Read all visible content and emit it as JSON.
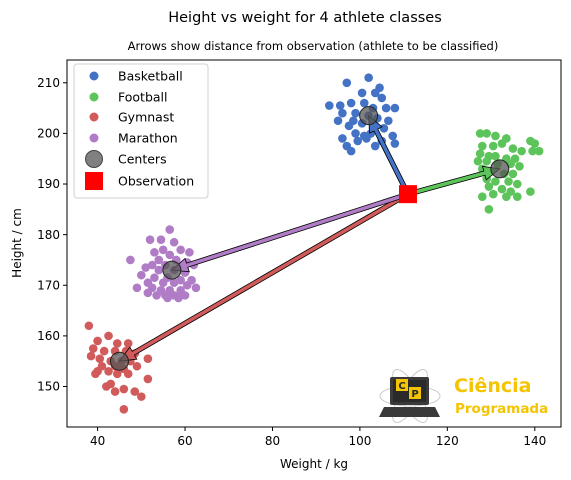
{
  "figure": {
    "suptitle": "Height vs weight for 4 athlete classes"
  },
  "chart_data": {
    "type": "scatter",
    "title": "Arrows show distance from observation (athlete to be classified)",
    "xlabel": "Weight / kg",
    "ylabel": "Height / cm",
    "xlim": [
      33,
      146
    ],
    "ylim": [
      142,
      214.5
    ],
    "xticks": [
      "40",
      "60",
      "80",
      "100",
      "120",
      "140"
    ],
    "yticks": [
      "150",
      "160",
      "170",
      "180",
      "190",
      "200",
      "210"
    ],
    "grid": false,
    "legend_position": "top-left",
    "series": [
      {
        "name": "Basketball",
        "color": "#4472c4",
        "points": [
          [
            102.0,
            211.0
          ],
          [
            97.0,
            210.0
          ],
          [
            104.5,
            209.0
          ],
          [
            100.5,
            208.0
          ],
          [
            103.5,
            208.0
          ],
          [
            105.0,
            207.0
          ],
          [
            93.0,
            205.5
          ],
          [
            95.5,
            205.5
          ],
          [
            98.0,
            206.0
          ],
          [
            101.0,
            206.0
          ],
          [
            103.0,
            205.0
          ],
          [
            106.0,
            205.0
          ],
          [
            108.0,
            205.0
          ],
          [
            96.0,
            204.0
          ],
          [
            99.0,
            204.0
          ],
          [
            102.0,
            203.5
          ],
          [
            104.0,
            203.0
          ],
          [
            106.5,
            202.5
          ],
          [
            95.0,
            202.5
          ],
          [
            98.5,
            202.5
          ],
          [
            100.5,
            202.0
          ],
          [
            97.5,
            201.5
          ],
          [
            103.0,
            201.0
          ],
          [
            105.5,
            201.0
          ],
          [
            99.0,
            200.0
          ],
          [
            102.5,
            200.0
          ],
          [
            101.0,
            199.5
          ],
          [
            107.5,
            199.5
          ],
          [
            96.0,
            199.0
          ],
          [
            99.5,
            198.5
          ],
          [
            105.0,
            198.5
          ],
          [
            97.0,
            197.5
          ],
          [
            103.5,
            197.5
          ],
          [
            108.0,
            198.0
          ],
          [
            98.0,
            196.5
          ],
          [
            101.5,
            199.0
          ]
        ]
      },
      {
        "name": "Football",
        "color": "#5cc45a",
        "points": [
          [
            127.5,
            200.0
          ],
          [
            129.0,
            200.0
          ],
          [
            131.0,
            199.5
          ],
          [
            133.5,
            199.0
          ],
          [
            139.0,
            198.5
          ],
          [
            140.0,
            198.0
          ],
          [
            128.0,
            197.5
          ],
          [
            130.5,
            197.5
          ],
          [
            132.5,
            198.0
          ],
          [
            135.0,
            197.0
          ],
          [
            137.0,
            196.5
          ],
          [
            139.5,
            196.5
          ],
          [
            141.0,
            196.5
          ],
          [
            127.5,
            196.0
          ],
          [
            129.5,
            195.5
          ],
          [
            131.0,
            195.5
          ],
          [
            133.5,
            195.0
          ],
          [
            135.5,
            195.0
          ],
          [
            127.0,
            194.5
          ],
          [
            129.0,
            194.5
          ],
          [
            131.5,
            194.0
          ],
          [
            134.5,
            194.0
          ],
          [
            136.5,
            193.5
          ],
          [
            128.0,
            193.0
          ],
          [
            130.0,
            192.5
          ],
          [
            133.0,
            192.0
          ],
          [
            135.0,
            192.0
          ],
          [
            129.0,
            191.0
          ],
          [
            131.0,
            190.5
          ],
          [
            134.0,
            190.5
          ],
          [
            136.0,
            190.0
          ],
          [
            129.5,
            189.5
          ],
          [
            132.5,
            189.0
          ],
          [
            134.5,
            188.5
          ],
          [
            139.0,
            188.5
          ],
          [
            130.5,
            188.0
          ],
          [
            128.0,
            187.5
          ],
          [
            133.5,
            187.5
          ],
          [
            136.0,
            187.5
          ],
          [
            129.5,
            185.0
          ]
        ]
      },
      {
        "name": "Gymnast",
        "color": "#d15b5b",
        "points": [
          [
            38.0,
            162.0
          ],
          [
            42.5,
            160.0
          ],
          [
            40.0,
            159.0
          ],
          [
            44.5,
            158.5
          ],
          [
            47.0,
            158.5
          ],
          [
            39.0,
            157.5
          ],
          [
            41.5,
            157.0
          ],
          [
            44.0,
            157.0
          ],
          [
            46.5,
            157.0
          ],
          [
            48.5,
            156.5
          ],
          [
            38.5,
            156.0
          ],
          [
            40.5,
            155.5
          ],
          [
            43.0,
            155.0
          ],
          [
            45.5,
            155.0
          ],
          [
            47.5,
            155.0
          ],
          [
            41.0,
            154.0
          ],
          [
            44.0,
            154.0
          ],
          [
            46.0,
            153.5
          ],
          [
            49.0,
            154.0
          ],
          [
            51.5,
            155.5
          ],
          [
            40.0,
            153.0
          ],
          [
            42.5,
            153.0
          ],
          [
            44.5,
            152.5
          ],
          [
            47.0,
            152.5
          ],
          [
            51.5,
            151.5
          ],
          [
            43.0,
            150.5
          ],
          [
            42.0,
            150.0
          ],
          [
            46.0,
            149.5
          ],
          [
            48.5,
            149.0
          ],
          [
            44.0,
            149.0
          ],
          [
            50.0,
            148.0
          ],
          [
            46.0,
            145.5
          ],
          [
            45.0,
            153.5
          ],
          [
            39.5,
            152.5
          ]
        ]
      },
      {
        "name": "Marathon",
        "color": "#b07cc6",
        "points": [
          [
            56.5,
            181.0
          ],
          [
            52.0,
            179.0
          ],
          [
            54.5,
            179.0
          ],
          [
            57.5,
            178.5
          ],
          [
            59.0,
            177.0
          ],
          [
            55.0,
            177.0
          ],
          [
            53.0,
            176.5
          ],
          [
            56.5,
            176.0
          ],
          [
            61.0,
            176.5
          ],
          [
            47.5,
            175.0
          ],
          [
            54.0,
            175.0
          ],
          [
            58.0,
            175.0
          ],
          [
            60.5,
            174.5
          ],
          [
            52.5,
            174.0
          ],
          [
            55.5,
            174.0
          ],
          [
            62.0,
            174.0
          ],
          [
            51.0,
            173.5
          ],
          [
            54.0,
            173.0
          ],
          [
            57.5,
            173.0
          ],
          [
            60.0,
            172.5
          ],
          [
            50.0,
            172.0
          ],
          [
            53.0,
            171.5
          ],
          [
            56.0,
            171.5
          ],
          [
            59.0,
            171.0
          ],
          [
            61.5,
            171.0
          ],
          [
            51.5,
            170.5
          ],
          [
            55.0,
            170.5
          ],
          [
            57.5,
            170.5
          ],
          [
            60.5,
            170.0
          ],
          [
            49.0,
            169.5
          ],
          [
            52.5,
            169.5
          ],
          [
            54.5,
            169.0
          ],
          [
            56.5,
            169.0
          ],
          [
            59.0,
            169.0
          ],
          [
            62.5,
            169.5
          ],
          [
            51.5,
            168.5
          ],
          [
            53.5,
            168.0
          ],
          [
            55.5,
            168.0
          ],
          [
            57.5,
            168.0
          ],
          [
            60.0,
            168.0
          ],
          [
            56.0,
            167.5
          ],
          [
            58.5,
            167.5
          ]
        ]
      }
    ],
    "centers": {
      "name": "Centers",
      "color": "#555555",
      "points": [
        [
          102.0,
          203.5
        ],
        [
          132.0,
          193.0
        ],
        [
          45.0,
          155.0
        ],
        [
          57.0,
          173.0
        ]
      ]
    },
    "observation": {
      "name": "Observation",
      "color": "#ff0000",
      "point": [
        111.0,
        188.0
      ]
    },
    "arrows": [
      {
        "to": "Basketball",
        "color": "#4472c4",
        "from": [
          111.0,
          188.0
        ],
        "end": [
          102.0,
          203.5
        ]
      },
      {
        "to": "Football",
        "color": "#5cc45a",
        "from": [
          111.0,
          188.0
        ],
        "end": [
          132.0,
          193.0
        ]
      },
      {
        "to": "Gymnast",
        "color": "#d15b5b",
        "from": [
          111.0,
          188.0
        ],
        "end": [
          45.0,
          155.0
        ]
      },
      {
        "to": "Marathon",
        "color": "#b07cc6",
        "from": [
          111.0,
          188.0
        ],
        "end": [
          57.0,
          173.0
        ]
      }
    ]
  },
  "logo": {
    "badge_left": "C",
    "badge_right": "P",
    "line1": "Ciência",
    "line2": "Programada"
  }
}
